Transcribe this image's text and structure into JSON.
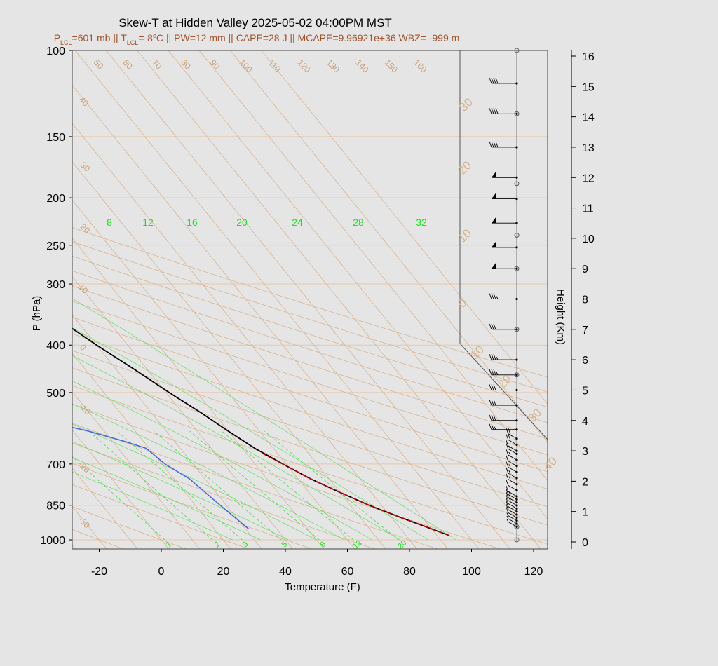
{
  "chart_data": {
    "type": "line",
    "title": "Skew-T at Hidden Valley 2025-05-02 04:00PM MST",
    "subtitle": "P_LCL=601 mb || T_LCL=-8°C || PW=12 mm || CAPE=28 J || MCAPE=9.96921e+36 WBZ= -999 m",
    "subtitle_parts": {
      "p_lcl": "601 mb",
      "t_lcl": "-8",
      "pw": "PW=12 mm",
      "cape": "CAPE=28 J",
      "mcape": "MCAPE=9.96921e+36",
      "wbz": "WBZ= -999 m"
    },
    "xlabel": "Temperature (F)",
    "ylabel": "P (hPa)",
    "y2label": "Height (Km)",
    "xlim": [
      -28,
      125
    ],
    "x_ticks": [
      -20,
      0,
      20,
      40,
      60,
      80,
      100,
      120
    ],
    "pressure_ticks": [
      100,
      150,
      200,
      250,
      300,
      400,
      500,
      700,
      850,
      1000
    ],
    "height_ticks_km": [
      0,
      1,
      2,
      3,
      4,
      5,
      6,
      7,
      8,
      9,
      10,
      11,
      12,
      13,
      14,
      15,
      16
    ],
    "isotherm_labels_f": [
      -30,
      -20,
      -10,
      0,
      10,
      20,
      30,
      40,
      50,
      60,
      70,
      80,
      90,
      100,
      110,
      120,
      130,
      140,
      150,
      160
    ],
    "mixing_ratio_labels_top": [
      "8",
      "12",
      "16",
      "20",
      "24",
      "28",
      "32"
    ],
    "mixing_ratio_labels_bottom": [
      "1",
      "2",
      "3",
      "5",
      "8",
      "12",
      "20"
    ],
    "isotherm_outer_labels": [
      "30",
      "20",
      "10",
      "0",
      "10",
      "20",
      "30",
      "40"
    ],
    "series": [
      {
        "name": "temperature",
        "color": "#000000",
        "points_p_f": [
          [
            980,
            94
          ],
          [
            950,
            90
          ],
          [
            900,
            83
          ],
          [
            850,
            76
          ],
          [
            800,
            70
          ],
          [
            750,
            64
          ],
          [
            700,
            59
          ],
          [
            650,
            54
          ],
          [
            600,
            50
          ],
          [
            550,
            46
          ],
          [
            500,
            41
          ],
          [
            450,
            36
          ],
          [
            400,
            30
          ],
          [
            350,
            24
          ],
          [
            300,
            20
          ],
          [
            250,
            18
          ],
          [
            200,
            17
          ],
          [
            150,
            20
          ],
          [
            120,
            25
          ],
          [
            100,
            30
          ]
        ]
      },
      {
        "name": "dewpoint",
        "color": "#4466dd",
        "points_p_f": [
          [
            950,
            31
          ],
          [
            850,
            28
          ],
          [
            750,
            25
          ],
          [
            700,
            21
          ],
          [
            650,
            19
          ],
          [
            630,
            14
          ],
          [
            600,
            5
          ],
          [
            580,
            -3
          ],
          [
            520,
            -9
          ],
          [
            480,
            -13
          ],
          [
            440,
            -12
          ],
          [
            400,
            -16
          ],
          [
            360,
            -14
          ],
          [
            330,
            -17
          ],
          [
            300,
            -19
          ],
          [
            270,
            -18
          ],
          [
            230,
            -19
          ],
          [
            200,
            -26
          ],
          [
            170,
            -33
          ],
          [
            140,
            -41
          ],
          [
            120,
            -46
          ],
          [
            100,
            -55
          ]
        ]
      },
      {
        "name": "parcel",
        "color": "#cc0000",
        "points_p_f": [
          [
            980,
            94
          ],
          [
            950,
            90
          ],
          [
            900,
            83
          ],
          [
            850,
            76
          ],
          [
            800,
            70
          ],
          [
            750,
            64
          ],
          [
            700,
            59
          ],
          [
            665,
            55
          ]
        ]
      }
    ],
    "wind_heights_km": [
      0.5,
      0.6,
      0.7,
      0.8,
      0.9,
      1.0,
      1.1,
      1.2,
      1.3,
      1.4,
      1.5,
      1.7,
      1.9,
      2.1,
      2.3,
      2.5,
      2.7,
      2.9,
      3.0,
      3.2,
      3.4,
      3.7,
      4.0,
      4.5,
      5.0,
      5.5,
      6.0,
      7.0,
      8.0,
      9.0,
      9.7,
      10.5,
      11.3,
      12.0,
      13.0,
      14.1,
      15.1
    ],
    "wind_speeds_kt": [
      5,
      5,
      5,
      10,
      10,
      10,
      10,
      15,
      15,
      15,
      10,
      10,
      15,
      15,
      15,
      10,
      15,
      15,
      10,
      20,
      20,
      25,
      30,
      30,
      30,
      35,
      35,
      30,
      35,
      50,
      50,
      50,
      50,
      50,
      40,
      40,
      40
    ]
  }
}
